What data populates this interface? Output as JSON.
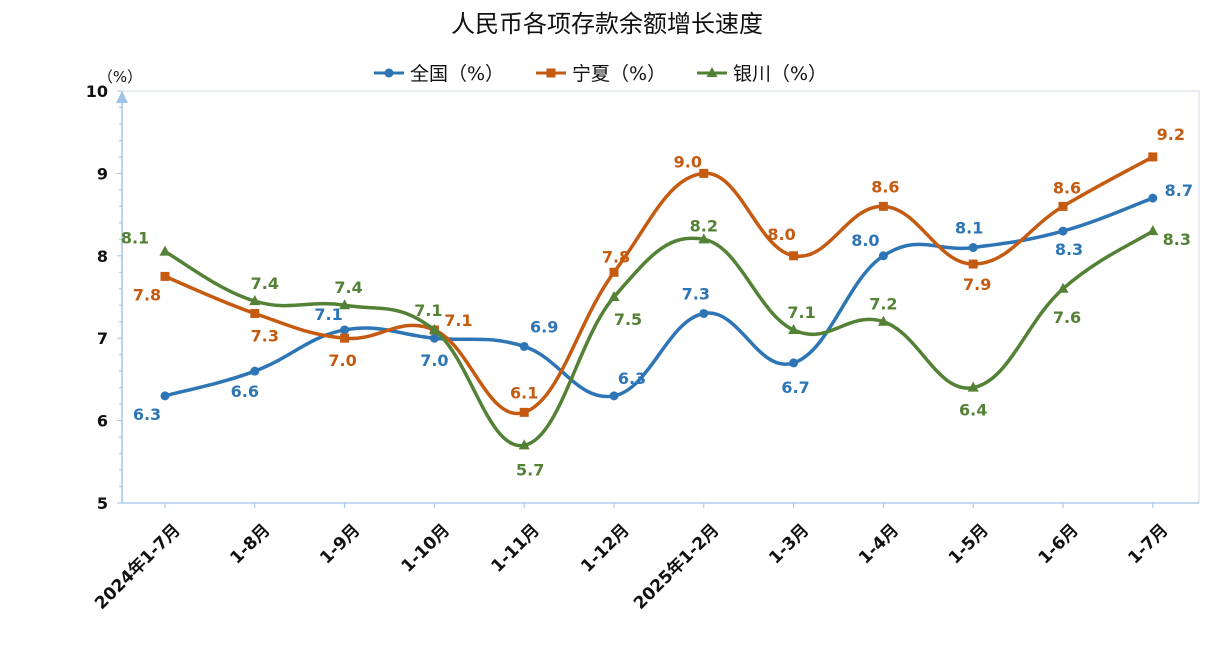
{
  "chart_data": {
    "type": "line",
    "title": "人民币各项存款余额增长速度",
    "ylabel": "（%）",
    "ylim": [
      5,
      10
    ],
    "yticks": [
      "5",
      "6",
      "7",
      "8",
      "9",
      "10"
    ],
    "categories": [
      "2024年1-7月",
      "1-8月",
      "1-9月",
      "1-10月",
      "1-11月",
      "1-12月",
      "2025年1-2月",
      "1-3月",
      "1-4月",
      "1-5月",
      "1-6月",
      "1-7月"
    ],
    "series": [
      {
        "name": "全国（%）",
        "color": "#2E75B6",
        "marker": "circle",
        "values": [
          6.3,
          6.6,
          7.1,
          7.0,
          6.9,
          6.3,
          7.3,
          6.7,
          8.0,
          8.1,
          8.3,
          8.7
        ],
        "labels": [
          "6.3",
          "6.6",
          "7.1",
          "7.0",
          "6.9",
          "6.3",
          "7.3",
          "6.7",
          "8.0",
          "8.1",
          "8.3",
          "8.7"
        ]
      },
      {
        "name": "宁夏（%）",
        "color": "#C55A11",
        "marker": "square",
        "values": [
          7.75,
          7.3,
          7.0,
          7.1,
          6.1,
          7.8,
          9.0,
          8.0,
          8.6,
          7.9,
          8.6,
          9.2
        ],
        "labels": [
          "7.8",
          "7.3",
          "7.0",
          "7.1",
          "6.1",
          "7.8",
          "9.0",
          "8.0",
          "8.6",
          "7.9",
          "8.6",
          "9.2"
        ]
      },
      {
        "name": "银川（%）",
        "color": "#538135",
        "marker": "triangle",
        "values": [
          8.05,
          7.45,
          7.4,
          7.1,
          5.7,
          7.5,
          8.2,
          7.1,
          7.2,
          6.4,
          7.6,
          8.3
        ],
        "labels": [
          "8.1",
          "7.4",
          "7.4",
          "7.1",
          "5.7",
          "7.5",
          "8.2",
          "7.1",
          "7.2",
          "6.4",
          "7.6",
          "8.3"
        ]
      }
    ],
    "legend_position": "top",
    "grid": false
  }
}
